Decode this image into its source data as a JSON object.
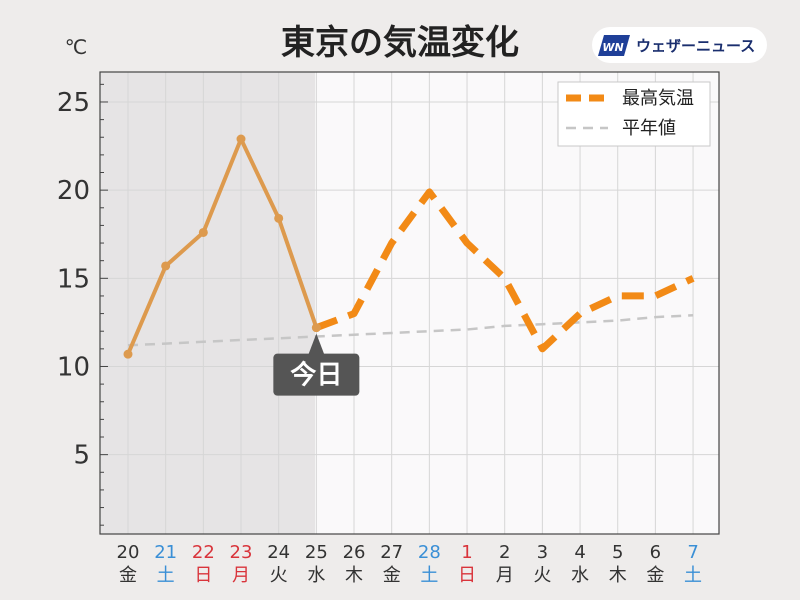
{
  "chart_data": {
    "type": "line",
    "title": "東京の気温変化",
    "unit": "℃",
    "ylim": [
      0.5,
      26.7
    ],
    "yticks": [
      5,
      10,
      15,
      20,
      25
    ],
    "grid": true,
    "legend_position": "top-right",
    "categories": [
      {
        "day": "20",
        "weekday": "金",
        "day_type": "weekday"
      },
      {
        "day": "21",
        "weekday": "土",
        "day_type": "saturday"
      },
      {
        "day": "22",
        "weekday": "日",
        "day_type": "holiday"
      },
      {
        "day": "23",
        "weekday": "月",
        "day_type": "holiday"
      },
      {
        "day": "24",
        "weekday": "火",
        "day_type": "weekday"
      },
      {
        "day": "25",
        "weekday": "水",
        "day_type": "weekday"
      },
      {
        "day": "26",
        "weekday": "木",
        "day_type": "weekday"
      },
      {
        "day": "27",
        "weekday": "金",
        "day_type": "weekday"
      },
      {
        "day": "28",
        "weekday": "土",
        "day_type": "saturday"
      },
      {
        "day": "1",
        "weekday": "日",
        "day_type": "holiday"
      },
      {
        "day": "2",
        "weekday": "月",
        "day_type": "weekday"
      },
      {
        "day": "3",
        "weekday": "火",
        "day_type": "weekday"
      },
      {
        "day": "4",
        "weekday": "水",
        "day_type": "weekday"
      },
      {
        "day": "5",
        "weekday": "木",
        "day_type": "weekday"
      },
      {
        "day": "6",
        "weekday": "金",
        "day_type": "weekday"
      },
      {
        "day": "7",
        "weekday": "土",
        "day_type": "saturday"
      }
    ],
    "series": [
      {
        "name": "最高気温",
        "values": [
          10.7,
          15.7,
          17.6,
          22.9,
          18.4,
          12.2,
          13.0,
          17.0,
          19.9,
          17.0,
          15.0,
          11.0,
          13.0,
          14.0,
          14.0,
          15.0
        ],
        "observed_range": [
          0,
          5
        ],
        "forecast_range": [
          5,
          15
        ],
        "color_observed": "#dd9a4e",
        "color_forecast": "#f28a16"
      },
      {
        "name": "平年値",
        "values": [
          11.2,
          11.3,
          11.4,
          11.5,
          11.6,
          11.7,
          11.8,
          11.9,
          12.0,
          12.1,
          12.3,
          12.4,
          12.5,
          12.6,
          12.8,
          12.9
        ],
        "color": "#c6c6c6"
      }
    ],
    "today_index": 5,
    "today_label": "今日",
    "colors": {
      "saturday": "#3a8fd6",
      "holiday": "#d9343b",
      "weekday": "#333333",
      "past_background": "#e6e4e5",
      "plot_background": "#faf9fa"
    }
  },
  "brand": {
    "logo_mark": "WN",
    "logo_text": "ウェザーニュース"
  }
}
